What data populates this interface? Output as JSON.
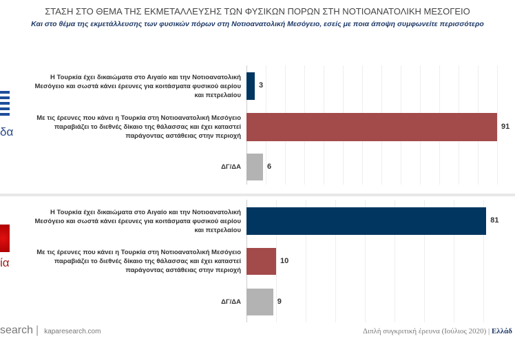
{
  "title": "ΣΤΑΣΗ ΣΤΟ ΘΕΜΑ ΤΗΣ ΕΚΜΕΤΑΛΛΕΥΣΗΣ ΤΩΝ ΦΥΣΙΚΩΝ ΠΟΡΩΝ ΣΤΗ ΝΟΤΙΟΑΝΑΤΟΛΙΚΗ ΜΕΣΟΓΕΙΟ",
  "subtitle": "Και στο θέμα της εκμετάλλευσης των φυσικών πόρων στη Νοτιοανατολική Μεσόγειο, εσείς με ποια άποψη συμφωνείτε περισσότερο",
  "panels": [
    {
      "country": "δα"
    },
    {
      "country": "ία"
    }
  ],
  "footer": {
    "brand": "search",
    "site": "kaparesearch.com",
    "note": "Διπλή συγκριτική έρευνα (Ιούλιος 2020) |",
    "country": "Ελλάδ"
  },
  "colors": {
    "navy": "#003660",
    "red": "#a34a4a",
    "gray": "#b3b3b3"
  },
  "chart_data": [
    {
      "type": "bar",
      "orientation": "horizontal",
      "group": "Greece",
      "categories": [
        "Η Τουρκία έχει δικαιώματα στο Αιγαίο και την Νοτιοανατολική Μεσόγειο και σωστά κάνει έρευνες για κοιτάσματα φυσικού αερίου και πετρελαίου",
        "Με τις έρευνες που κάνει η Τουρκία στη Νοτιοανατολική Μεσόγειο παραβιάζει το διεθνές δίκαιο της θάλασσας και έχει καταστεί παράγοντας αστάθειας στην περιοχή",
        "ΔΓ/ΔΑ"
      ],
      "values": [
        3,
        91,
        6
      ],
      "labels": [
        "3",
        "91",
        "6"
      ],
      "colors": [
        "#003660",
        "#a34a4a",
        "#b3b3b3"
      ]
    },
    {
      "type": "bar",
      "orientation": "horizontal",
      "group": "Turkey",
      "categories": [
        "Η Τουρκία έχει δικαιώματα στο Αιγαίο και την Νοτιοανατολική Μεσόγειο και σωστά κάνει έρευνες για κοιτάσματα φυσικού αερίου και πετρελαίου",
        "Με τις έρευνες που κάνει η Τουρκία στη Νοτιοανατολική Μεσόγειο παραβιάζει το διεθνές δίκαιο της θάλασσας και έχει καταστεί παράγοντας αστάθειας στην περιοχή",
        "ΔΓ/ΔΑ"
      ],
      "values": [
        81,
        10,
        9
      ],
      "labels": [
        "81",
        "10",
        "9"
      ],
      "colors": [
        "#003660",
        "#a34a4a",
        "#b3b3b3"
      ]
    }
  ]
}
